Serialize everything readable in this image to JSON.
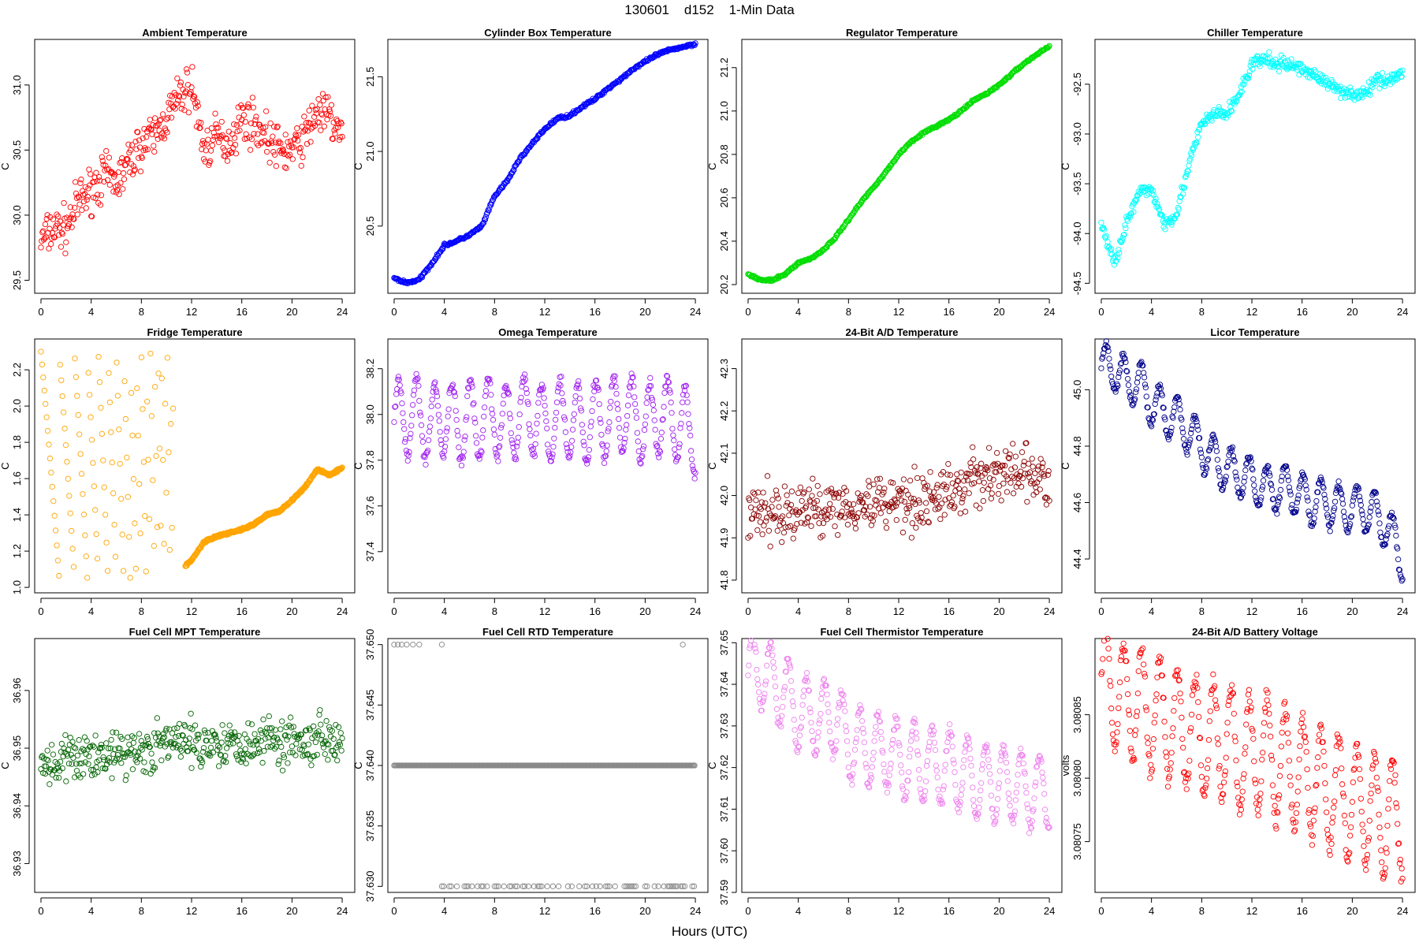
{
  "page_title": "130601    d152    1-Min Data",
  "x_axis_label": "Hours (UTC)",
  "chart_data": [
    {
      "type": "scatter",
      "title": "Ambient Temperature",
      "ylabel": "C",
      "color": "#ff0000",
      "xticks": [
        0,
        4,
        8,
        12,
        16,
        20,
        24
      ],
      "yticks": [
        29.5,
        30.0,
        30.5,
        31.0
      ],
      "xlim": [
        -0.5,
        25
      ],
      "ylim": [
        29.4,
        31.35
      ],
      "x": [
        0,
        1,
        2,
        3,
        4,
        5,
        6,
        7,
        8,
        9,
        10,
        11,
        12,
        13,
        14,
        15,
        16,
        17,
        18,
        19,
        20,
        21,
        22,
        23,
        24
      ],
      "y": [
        29.8,
        29.9,
        29.9,
        30.1,
        30.2,
        30.3,
        30.25,
        30.4,
        30.55,
        30.6,
        30.75,
        30.9,
        31.0,
        30.5,
        30.6,
        30.55,
        30.75,
        30.7,
        30.6,
        30.5,
        30.5,
        30.6,
        30.8,
        30.75,
        30.6
      ],
      "spread": 0.25
    },
    {
      "type": "scatter",
      "title": "Cylinder Box Temperature",
      "ylabel": "C",
      "color": "#0000ff",
      "xticks": [
        0,
        4,
        8,
        12,
        16,
        20,
        24
      ],
      "yticks": [
        20.5,
        21.0,
        21.5
      ],
      "xlim": [
        -0.5,
        25
      ],
      "ylim": [
        20.05,
        21.75
      ],
      "x": [
        0,
        1,
        2,
        3,
        4,
        5,
        6,
        7,
        8,
        9,
        10,
        11,
        12,
        13,
        14,
        15,
        16,
        17,
        18,
        19,
        20,
        21,
        22,
        23,
        24
      ],
      "y": [
        20.15,
        20.12,
        20.14,
        20.25,
        20.37,
        20.4,
        20.44,
        20.5,
        20.7,
        20.8,
        20.95,
        21.05,
        21.15,
        21.22,
        21.24,
        21.3,
        21.35,
        21.42,
        21.48,
        21.55,
        21.6,
        21.65,
        21.68,
        21.7,
        21.72
      ],
      "spread": 0.015
    },
    {
      "type": "scatter",
      "title": "Regulator Temperature",
      "ylabel": "C",
      "color": "#00dd00",
      "xticks": [
        0,
        4,
        8,
        12,
        16,
        20,
        24
      ],
      "yticks": [
        20.2,
        20.4,
        20.6,
        20.8,
        21.0,
        21.2
      ],
      "xlim": [
        -0.5,
        25
      ],
      "ylim": [
        20.16,
        21.33
      ],
      "x": [
        0,
        1,
        2,
        3,
        4,
        5,
        6,
        7,
        8,
        9,
        10,
        11,
        12,
        13,
        14,
        15,
        16,
        17,
        18,
        19,
        20,
        21,
        22,
        23,
        24
      ],
      "y": [
        20.25,
        20.22,
        20.22,
        20.25,
        20.3,
        20.32,
        20.36,
        20.42,
        20.5,
        20.58,
        20.65,
        20.72,
        20.8,
        20.86,
        20.9,
        20.93,
        20.96,
        21.0,
        21.05,
        21.08,
        21.12,
        21.17,
        21.22,
        21.26,
        21.3
      ],
      "spread": 0.008
    },
    {
      "type": "scatter",
      "title": "Chiller Temperature",
      "ylabel": "C",
      "color": "#00ffff",
      "xticks": [
        0,
        4,
        8,
        12,
        16,
        20,
        24
      ],
      "yticks": [
        -94.5,
        -94.0,
        -93.5,
        -93.0,
        -92.5
      ],
      "xlim": [
        -0.5,
        25
      ],
      "ylim": [
        -94.6,
        -92.05
      ],
      "x": [
        0,
        1,
        2,
        3,
        4,
        5,
        6,
        7,
        8,
        9,
        10,
        11,
        12,
        13,
        14,
        15,
        16,
        17,
        18,
        19,
        20,
        21,
        22,
        23,
        24
      ],
      "y": [
        -93.9,
        -94.3,
        -93.9,
        -93.6,
        -93.55,
        -93.9,
        -93.8,
        -93.3,
        -92.9,
        -92.8,
        -92.8,
        -92.6,
        -92.3,
        -92.25,
        -92.3,
        -92.3,
        -92.35,
        -92.4,
        -92.5,
        -92.55,
        -92.6,
        -92.6,
        -92.45,
        -92.45,
        -92.4
      ],
      "spread": 0.1
    },
    {
      "type": "scatter",
      "title": "Fridge Temperature",
      "ylabel": "C",
      "color": "#ffa500",
      "xticks": [
        0,
        4,
        8,
        12,
        16,
        20,
        24
      ],
      "yticks": [
        1.0,
        1.2,
        1.4,
        1.6,
        1.8,
        2.0,
        2.2
      ],
      "xlim": [
        -0.5,
        25
      ],
      "ylim": [
        0.97,
        2.37
      ],
      "x": [
        11.5,
        12,
        13,
        14,
        15,
        16,
        17,
        18,
        19,
        20,
        21,
        22,
        23,
        24
      ],
      "y": [
        1.12,
        1.15,
        1.25,
        1.28,
        1.3,
        1.32,
        1.35,
        1.4,
        1.42,
        1.48,
        1.55,
        1.65,
        1.62,
        1.66
      ],
      "spread": 0.01
    },
    {
      "type": "scatter",
      "title": "Omega Temperature",
      "ylabel": "C",
      "color": "#a020f0",
      "xticks": [
        0,
        4,
        8,
        12,
        16,
        20,
        24
      ],
      "yticks": [
        37.4,
        37.6,
        37.8,
        38.0,
        38.2
      ],
      "xlim": [
        -0.5,
        25
      ],
      "ylim": [
        37.22,
        38.33
      ],
      "x": [
        0,
        1,
        2,
        3,
        4,
        5,
        6,
        7,
        8,
        9,
        10,
        11,
        12,
        13,
        14,
        15,
        16,
        17,
        18,
        19,
        20,
        21,
        22,
        23,
        24
      ],
      "y": [
        37.98,
        38.0,
        37.98,
        37.95,
        38.0,
        37.95,
        37.98,
        37.98,
        38.0,
        37.95,
        38.0,
        38.0,
        37.95,
        37.98,
        37.98,
        37.95,
        37.98,
        37.98,
        38.0,
        38.0,
        37.95,
        38.0,
        37.98,
        37.95,
        37.9
      ],
      "spread": 0.17
    },
    {
      "type": "scatter",
      "title": "24-Bit A/D Temperature",
      "ylabel": "C",
      "color": "#8b0000",
      "xticks": [
        0,
        4,
        8,
        12,
        16,
        20,
        24
      ],
      "yticks": [
        41.8,
        41.9,
        42.0,
        42.1,
        42.2,
        42.3
      ],
      "xlim": [
        -0.5,
        25
      ],
      "ylim": [
        41.77,
        42.37
      ],
      "x": [
        0,
        1,
        2,
        3,
        4,
        5,
        6,
        7,
        8,
        9,
        10,
        11,
        12,
        13,
        14,
        15,
        16,
        17,
        18,
        19,
        20,
        21,
        22,
        23,
        24
      ],
      "y": [
        41.95,
        41.96,
        41.96,
        41.96,
        41.96,
        41.97,
        41.97,
        41.98,
        41.98,
        41.98,
        41.98,
        41.99,
        41.99,
        41.99,
        41.99,
        42.0,
        42.0,
        42.02,
        42.04,
        42.05,
        42.05,
        42.05,
        42.05,
        42.05,
        42.0
      ],
      "spread": 0.1
    },
    {
      "type": "scatter",
      "title": "Licor Temperature",
      "ylabel": "C",
      "color": "#00008b",
      "xticks": [
        0,
        4,
        8,
        12,
        16,
        20,
        24
      ],
      "yticks": [
        44.4,
        44.6,
        44.8,
        45.0
      ],
      "xlim": [
        -0.5,
        25
      ],
      "ylim": [
        44.28,
        45.18
      ],
      "x": [
        0,
        1,
        2,
        3,
        4,
        5,
        6,
        7,
        8,
        9,
        10,
        11,
        12,
        13,
        14,
        15,
        16,
        17,
        18,
        19,
        20,
        21,
        22,
        23,
        24
      ],
      "y": [
        45.08,
        45.08,
        45.03,
        45.03,
        44.95,
        44.92,
        44.9,
        44.85,
        44.8,
        44.75,
        44.72,
        44.7,
        44.68,
        44.65,
        44.65,
        44.65,
        44.62,
        44.6,
        44.6,
        44.58,
        44.58,
        44.58,
        44.55,
        44.5,
        44.4
      ],
      "spread": 0.08
    },
    {
      "type": "scatter",
      "title": "Fuel Cell MPT Temperature",
      "ylabel": "C",
      "color": "#006400",
      "xticks": [
        0,
        4,
        8,
        12,
        16,
        20,
        24
      ],
      "yticks": [
        36.93,
        36.94,
        36.95,
        36.96
      ],
      "xlim": [
        -0.5,
        25
      ],
      "ylim": [
        36.925,
        36.969
      ],
      "x": [
        0,
        1,
        2,
        3,
        4,
        5,
        6,
        7,
        8,
        9,
        10,
        11,
        12,
        13,
        14,
        15,
        16,
        17,
        18,
        19,
        20,
        21,
        22,
        23,
        24
      ],
      "y": [
        36.948,
        36.947,
        36.948,
        36.948,
        36.949,
        36.949,
        36.949,
        36.949,
        36.95,
        36.95,
        36.951,
        36.951,
        36.951,
        36.951,
        36.951,
        36.951,
        36.951,
        36.951,
        36.952,
        36.951,
        36.952,
        36.951,
        36.952,
        36.952,
        36.952
      ],
      "spread": 0.006
    },
    {
      "type": "scatter",
      "title": "Fuel Cell RTD Temperature",
      "ylabel": "C",
      "color": "#888888",
      "xticks": [
        0,
        4,
        8,
        12,
        16,
        20,
        24
      ],
      "yticks": [
        37.63,
        37.635,
        37.64,
        37.645,
        37.65
      ],
      "xlim": [
        -0.5,
        25
      ],
      "ylim": [
        37.6295,
        37.6505
      ],
      "x": [
        0,
        4,
        8,
        12,
        16,
        20,
        24
      ],
      "y": [
        37.64,
        37.64,
        37.64,
        37.64,
        37.64,
        37.64,
        37.64
      ],
      "spread": 0.0
    },
    {
      "type": "scatter",
      "title": "Fuel Cell Thermistor Temperature",
      "ylabel": "C",
      "color": "#ee82ee",
      "xticks": [
        0,
        4,
        8,
        12,
        16,
        20,
        24
      ],
      "yticks": [
        37.59,
        37.6,
        37.61,
        37.62,
        37.63,
        37.64,
        37.65
      ],
      "xlim": [
        -0.5,
        25
      ],
      "ylim": [
        37.59,
        37.651
      ],
      "x": [
        0,
        1,
        2,
        3,
        4,
        5,
        6,
        7,
        8,
        9,
        10,
        11,
        12,
        13,
        14,
        15,
        16,
        17,
        18,
        19,
        20,
        21,
        22,
        23,
        24
      ],
      "y": [
        37.643,
        37.643,
        37.64,
        37.638,
        37.633,
        37.632,
        37.632,
        37.632,
        37.626,
        37.625,
        37.624,
        37.624,
        37.622,
        37.622,
        37.621,
        37.621,
        37.62,
        37.619,
        37.617,
        37.617,
        37.616,
        37.616,
        37.615,
        37.614,
        37.614
      ],
      "spread": 0.009
    },
    {
      "type": "scatter",
      "title": "24-Bit A/D Battery Voltage",
      "ylabel": "volts",
      "color": "#ff0000",
      "xticks": [
        0,
        4,
        8,
        12,
        16,
        20,
        24
      ],
      "yticks": [
        3.08075,
        3.0808,
        3.08085
      ],
      "xlim": [
        -0.5,
        25
      ],
      "ylim": [
        3.08071,
        3.08091
      ],
      "x": [
        0,
        1,
        2,
        3,
        4,
        5,
        6,
        7,
        8,
        9,
        10,
        11,
        12,
        13,
        14,
        15,
        16,
        17,
        18,
        19,
        20,
        21,
        22,
        23,
        24
      ],
      "y": [
        3.08088,
        3.08087,
        3.08086,
        3.08086,
        3.08085,
        3.08085,
        3.08084,
        3.08084,
        3.08083,
        3.08083,
        3.08083,
        3.08082,
        3.08082,
        3.08082,
        3.08081,
        3.08081,
        3.0808,
        3.0808,
        3.08079,
        3.08079,
        3.08078,
        3.08078,
        3.08077,
        3.08077,
        3.08077
      ],
      "spread": 4.5e-05
    }
  ]
}
